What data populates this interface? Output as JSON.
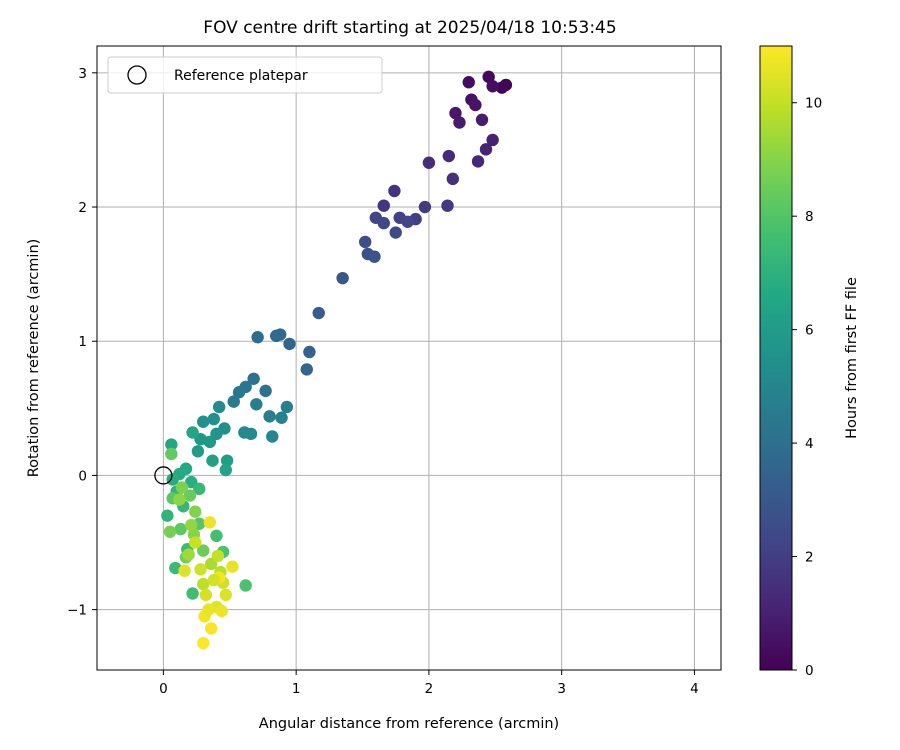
{
  "chart_data": {
    "type": "scatter",
    "title": "FOV centre drift starting at 2025/04/18 10:53:45",
    "xlabel": "Angular distance from reference (arcmin)",
    "ylabel": "Rotation from reference (arcmin)",
    "xlim": [
      -0.5,
      4.2
    ],
    "ylim": [
      -1.45,
      3.2
    ],
    "xticks": [
      0,
      1,
      2,
      3,
      4
    ],
    "yticks": [
      -1,
      0,
      1,
      2,
      3
    ],
    "ytick_labels": [
      "−1",
      "0",
      "1",
      "2",
      "3"
    ],
    "grid": true,
    "legend": {
      "placement": "top-left",
      "entries": [
        "Reference platepar"
      ]
    },
    "reference_point": {
      "name": "Reference platepar",
      "x": 0,
      "y": 0,
      "marker": "open-circle"
    },
    "colorbar": {
      "label": "Hours from first FF file",
      "range": [
        0,
        11
      ],
      "ticks": [
        0,
        2,
        4,
        6,
        8,
        10
      ],
      "colormap": "viridis"
    },
    "points": [
      [
        2.58,
        2.91,
        0.05
      ],
      [
        2.55,
        2.89,
        0.12
      ],
      [
        2.45,
        2.97,
        0.2
      ],
      [
        2.3,
        2.93,
        0.3
      ],
      [
        2.48,
        2.9,
        0.4
      ],
      [
        2.32,
        2.8,
        0.5
      ],
      [
        2.35,
        2.76,
        0.6
      ],
      [
        2.2,
        2.7,
        0.7
      ],
      [
        2.23,
        2.63,
        0.8
      ],
      [
        2.4,
        2.65,
        0.9
      ],
      [
        2.48,
        2.5,
        1.0
      ],
      [
        2.43,
        2.43,
        1.1
      ],
      [
        2.37,
        2.34,
        1.2
      ],
      [
        2.15,
        2.38,
        1.3
      ],
      [
        2.0,
        2.33,
        1.4
      ],
      [
        2.18,
        2.21,
        1.5
      ],
      [
        1.74,
        2.12,
        1.6
      ],
      [
        1.66,
        2.01,
        1.7
      ],
      [
        2.14,
        2.01,
        1.8
      ],
      [
        1.97,
        2.0,
        1.9
      ],
      [
        1.9,
        1.91,
        2.0
      ],
      [
        1.78,
        1.92,
        2.1
      ],
      [
        1.6,
        1.92,
        2.2
      ],
      [
        1.84,
        1.89,
        2.3
      ],
      [
        1.66,
        1.88,
        2.4
      ],
      [
        1.75,
        1.81,
        2.5
      ],
      [
        1.52,
        1.74,
        2.6
      ],
      [
        1.54,
        1.65,
        2.7
      ],
      [
        1.59,
        1.63,
        2.8
      ],
      [
        1.35,
        1.47,
        3.0
      ],
      [
        1.17,
        1.21,
        3.2
      ],
      [
        1.1,
        0.92,
        3.4
      ],
      [
        0.95,
        0.98,
        3.5
      ],
      [
        1.08,
        0.79,
        3.6
      ],
      [
        0.85,
        1.04,
        3.7
      ],
      [
        0.88,
        1.05,
        3.8
      ],
      [
        0.71,
        1.03,
        3.9
      ],
      [
        0.68,
        0.72,
        4.1
      ],
      [
        0.77,
        0.63,
        4.2
      ],
      [
        0.62,
        0.66,
        4.3
      ],
      [
        0.57,
        0.62,
        4.4
      ],
      [
        0.53,
        0.55,
        4.5
      ],
      [
        0.7,
        0.53,
        4.6
      ],
      [
        0.8,
        0.44,
        4.7
      ],
      [
        0.93,
        0.51,
        4.8
      ],
      [
        0.89,
        0.43,
        4.9
      ],
      [
        0.82,
        0.29,
        5.0
      ],
      [
        0.61,
        0.32,
        5.1
      ],
      [
        0.66,
        0.31,
        5.2
      ],
      [
        0.42,
        0.51,
        5.3
      ],
      [
        0.46,
        0.35,
        5.4
      ],
      [
        0.38,
        0.42,
        5.5
      ],
      [
        0.3,
        0.4,
        5.6
      ],
      [
        0.4,
        0.31,
        5.7
      ],
      [
        0.28,
        0.27,
        5.8
      ],
      [
        0.35,
        0.25,
        5.9
      ],
      [
        0.26,
        0.18,
        6.0
      ],
      [
        0.48,
        0.11,
        6.1
      ],
      [
        0.37,
        0.11,
        6.2
      ],
      [
        0.47,
        0.04,
        6.3
      ],
      [
        0.22,
        0.32,
        6.4
      ],
      [
        0.06,
        0.23,
        6.5
      ],
      [
        0.17,
        0.05,
        6.6
      ],
      [
        0.12,
        0.01,
        6.7
      ],
      [
        0.07,
        -0.03,
        6.8
      ],
      [
        0.21,
        -0.05,
        6.9
      ],
      [
        0.1,
        -0.12,
        7.0
      ],
      [
        0.03,
        -0.3,
        7.1
      ],
      [
        0.15,
        -0.23,
        7.2
      ],
      [
        0.27,
        -0.1,
        7.3
      ],
      [
        0.09,
        -0.69,
        7.4
      ],
      [
        0.18,
        -0.55,
        7.5
      ],
      [
        0.22,
        -0.88,
        7.6
      ],
      [
        0.4,
        -0.45,
        7.7
      ],
      [
        0.62,
        -0.82,
        7.8
      ],
      [
        0.45,
        -0.57,
        7.9
      ],
      [
        0.27,
        -0.36,
        8.0
      ],
      [
        0.07,
        -0.17,
        8.1
      ],
      [
        0.13,
        -0.4,
        8.2
      ],
      [
        0.06,
        0.16,
        8.3
      ],
      [
        0.2,
        -0.15,
        8.4
      ],
      [
        0.3,
        -0.56,
        8.5
      ],
      [
        0.17,
        -0.61,
        8.6
      ],
      [
        0.05,
        -0.42,
        8.7
      ],
      [
        0.14,
        -0.09,
        8.8
      ],
      [
        0.24,
        -0.27,
        8.9
      ],
      [
        0.23,
        -0.44,
        9.0
      ],
      [
        0.12,
        -0.18,
        9.1
      ],
      [
        0.21,
        -0.37,
        9.2
      ],
      [
        0.19,
        -0.59,
        9.4
      ],
      [
        0.36,
        -0.66,
        9.6
      ],
      [
        0.43,
        -0.72,
        9.8
      ],
      [
        0.3,
        -0.81,
        9.9
      ],
      [
        0.41,
        -0.6,
        10.0
      ],
      [
        0.24,
        -0.5,
        10.1
      ],
      [
        0.45,
        -0.8,
        10.2
      ],
      [
        0.32,
        -0.89,
        10.3
      ],
      [
        0.47,
        -0.89,
        10.4
      ],
      [
        0.4,
        -0.98,
        10.5
      ],
      [
        0.52,
        -0.68,
        10.6
      ],
      [
        0.35,
        -0.35,
        10.7
      ],
      [
        0.31,
        -1.05,
        10.8
      ],
      [
        0.36,
        -1.14,
        10.9
      ],
      [
        0.3,
        -1.25,
        10.95
      ],
      [
        0.42,
        -0.76,
        10.8
      ],
      [
        0.44,
        -1.01,
        10.7
      ],
      [
        0.34,
        -1.0,
        10.6
      ],
      [
        0.16,
        -0.71,
        10.4
      ],
      [
        0.28,
        -0.7,
        10.2
      ],
      [
        0.38,
        -0.78,
        10.3
      ]
    ]
  }
}
